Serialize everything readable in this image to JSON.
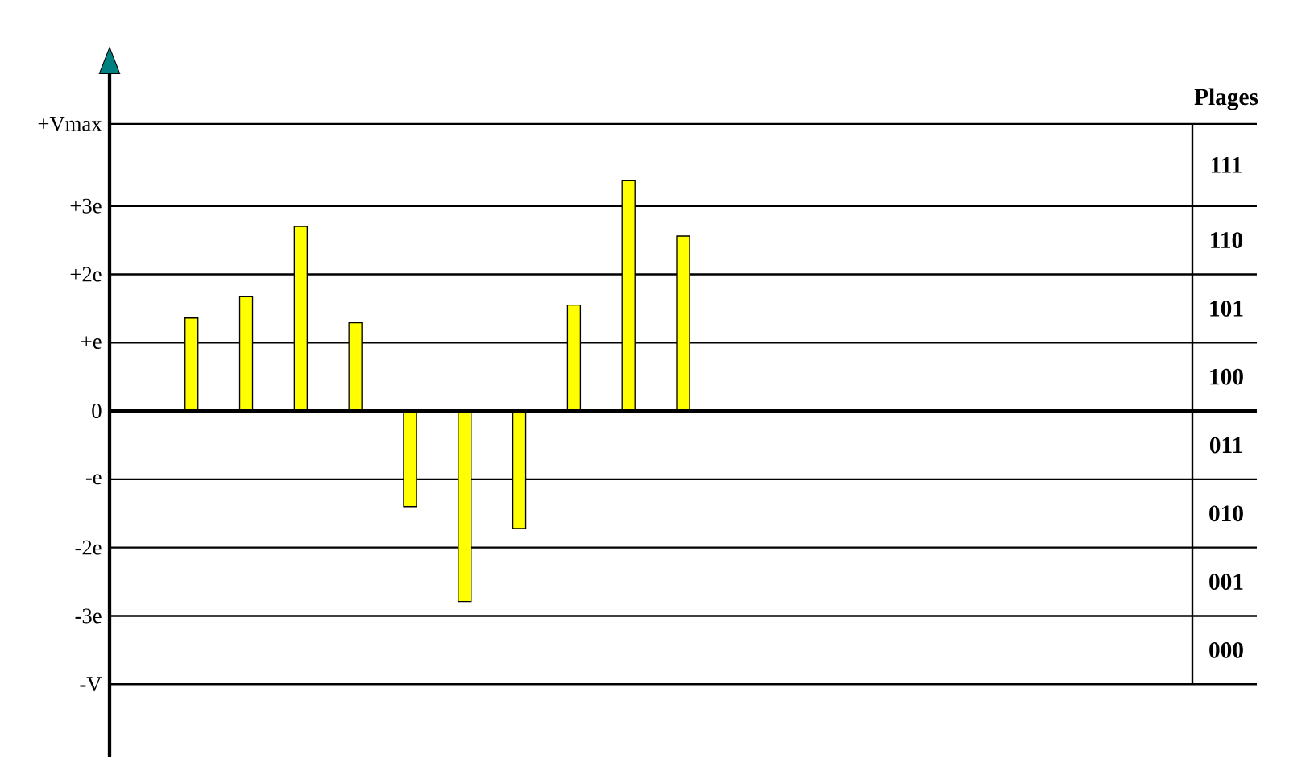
{
  "chart_data": {
    "type": "bar",
    "legend_title": "Plages",
    "categories": [
      null,
      null,
      null,
      null,
      null,
      null,
      null,
      null,
      null,
      null,
      null,
      null,
      null,
      null,
      null,
      null,
      null,
      null,
      null,
      null,
      null
    ],
    "values": [
      null,
      1.36,
      1.67,
      2.7,
      1.29,
      -1.4,
      -2.79,
      -1.72,
      1.55,
      3.37,
      2.56,
      null,
      null,
      null,
      null,
      null,
      null,
      null,
      null,
      null,
      null
    ],
    "color": "#ffff00",
    "ylim": [
      -5.07,
      4.93
    ],
    "yticks": [
      {
        "value": 4.2,
        "label": "+Vmax"
      },
      {
        "value": 3,
        "label": "+3e"
      },
      {
        "value": 2,
        "label": "+2e"
      },
      {
        "value": 1,
        "label": "+e"
      },
      0,
      {
        "value": -1,
        "label": "-e"
      },
      {
        "value": -2,
        "label": "-2e"
      },
      {
        "value": -3,
        "label": "-3e"
      },
      {
        "value": -4,
        "label": "-V"
      }
    ],
    "grid": "y",
    "tick_labels": "y",
    "annotations": [
      "111",
      "110",
      "101",
      "100",
      "011",
      "010",
      "001",
      "000"
    ]
  }
}
